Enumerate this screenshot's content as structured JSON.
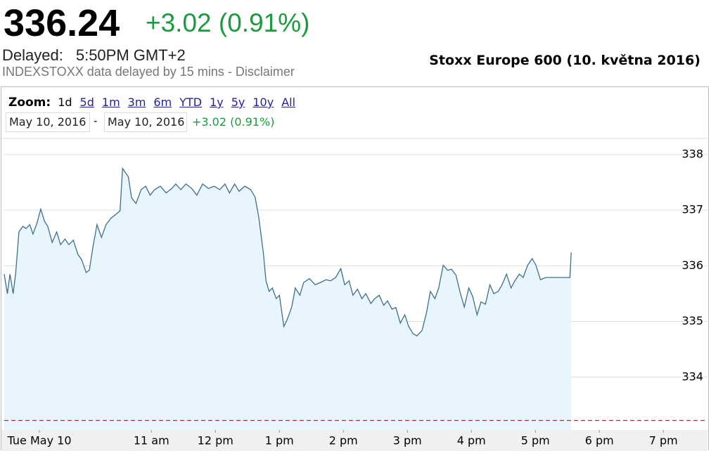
{
  "header": {
    "price": "336.24",
    "change": "+3.02 (0.91%)",
    "delayed_label": "Delayed:",
    "delayed_time": "5:50PM GMT+2",
    "notice": "INDEXSTOXX data delayed by 15 mins - Disclaimer"
  },
  "toolbar": {
    "zoom_label": "Zoom:",
    "zoom_options": [
      "1d",
      "5d",
      "1m",
      "3m",
      "6m",
      "YTD",
      "1y",
      "5y",
      "10y",
      "All"
    ],
    "from": "May 10, 2016",
    "separator": "-",
    "to": "May 10, 2016",
    "range_change": "+3.02 (0.91%)"
  },
  "chart_data": {
    "type": "line",
    "title": "Stoxx Europe 600 (10. května 2016)",
    "x": [
      8.7,
      8.75,
      8.79,
      8.84,
      8.88,
      8.93,
      8.99,
      9.04,
      9.1,
      9.15,
      9.21,
      9.27,
      9.33,
      9.38,
      9.45,
      9.52,
      9.58,
      9.65,
      9.71,
      9.78,
      9.85,
      9.91,
      9.98,
      10.03,
      10.09,
      10.15,
      10.22,
      10.29,
      10.37,
      10.45,
      10.51,
      10.55,
      10.64,
      10.69,
      10.76,
      10.84,
      10.91,
      10.98,
      11.05,
      11.14,
      11.23,
      11.32,
      11.38,
      11.46,
      11.54,
      11.63,
      11.71,
      11.8,
      11.89,
      11.98,
      12.07,
      12.15,
      12.22,
      12.3,
      12.37,
      12.46,
      12.55,
      12.62,
      12.68,
      12.75,
      12.79,
      12.84,
      12.89,
      12.95,
      13.0,
      13.07,
      13.12,
      13.19,
      13.25,
      13.32,
      13.38,
      13.47,
      13.56,
      13.64,
      13.73,
      13.8,
      13.88,
      13.96,
      14.02,
      14.09,
      14.15,
      14.22,
      14.29,
      14.35,
      14.43,
      14.49,
      14.56,
      14.63,
      14.69,
      14.76,
      14.82,
      14.89,
      14.96,
      15.02,
      15.09,
      15.15,
      15.23,
      15.3,
      15.36,
      15.43,
      15.49,
      15.56,
      15.63,
      15.69,
      15.76,
      15.82,
      15.89,
      15.96,
      16.02,
      16.09,
      16.15,
      16.22,
      16.29,
      16.35,
      16.42,
      16.48,
      16.55,
      16.62,
      16.68,
      16.75,
      16.81,
      16.88,
      16.95,
      17.01,
      17.08,
      17.16,
      17.32,
      17.54,
      17.56
    ],
    "values": [
      335.85,
      335.5,
      335.85,
      335.5,
      335.88,
      336.61,
      336.71,
      336.67,
      336.74,
      336.57,
      336.76,
      337.02,
      336.8,
      336.71,
      336.42,
      336.61,
      336.38,
      336.48,
      336.38,
      336.46,
      336.21,
      336.11,
      335.88,
      335.92,
      336.36,
      336.74,
      336.51,
      336.74,
      336.86,
      336.93,
      336.99,
      337.75,
      337.6,
      337.22,
      337.12,
      337.37,
      337.43,
      337.27,
      337.37,
      337.43,
      337.31,
      337.39,
      337.47,
      337.37,
      337.47,
      337.39,
      337.27,
      337.47,
      337.39,
      337.43,
      337.37,
      337.47,
      337.31,
      337.47,
      337.34,
      337.43,
      337.37,
      337.24,
      336.86,
      336.23,
      335.73,
      335.54,
      335.6,
      335.41,
      335.47,
      334.91,
      335.03,
      335.25,
      335.6,
      335.47,
      335.7,
      335.77,
      335.66,
      335.7,
      335.75,
      335.73,
      335.79,
      335.95,
      335.66,
      335.73,
      335.47,
      335.58,
      335.41,
      335.5,
      335.32,
      335.41,
      335.47,
      335.29,
      335.37,
      335.22,
      335.25,
      334.97,
      335.12,
      334.91,
      334.78,
      334.74,
      334.84,
      335.16,
      335.54,
      335.41,
      335.6,
      336.01,
      335.92,
      335.94,
      335.83,
      335.54,
      335.26,
      335.6,
      335.45,
      335.12,
      335.35,
      335.31,
      335.66,
      335.5,
      335.54,
      335.66,
      335.85,
      335.6,
      335.73,
      335.85,
      335.79,
      336.01,
      336.13,
      336.01,
      335.75,
      335.79,
      335.79,
      335.79,
      336.24
    ],
    "xlim": [
      8.7,
      19.69
    ],
    "ylim": [
      333.05,
      338.29
    ],
    "xticks": [
      {
        "value": 9.25,
        "label": "Tue May 10"
      },
      {
        "value": 11,
        "label": "11 am"
      },
      {
        "value": 12,
        "label": "12 pm"
      },
      {
        "value": 13,
        "label": "1 pm"
      },
      {
        "value": 14,
        "label": "2 pm"
      },
      {
        "value": 15,
        "label": "3 pm"
      },
      {
        "value": 16,
        "label": "4 pm"
      },
      {
        "value": 17,
        "label": "5 pm"
      },
      {
        "value": 18,
        "label": "6 pm"
      },
      {
        "value": 19,
        "label": "7 pm"
      }
    ],
    "yticks": [
      334,
      335,
      336,
      337,
      338
    ],
    "grid": true,
    "color": "#3d6f8e",
    "fill": "#e9f5fc",
    "reference_line": 333.22,
    "reference_color": "#b03030"
  }
}
